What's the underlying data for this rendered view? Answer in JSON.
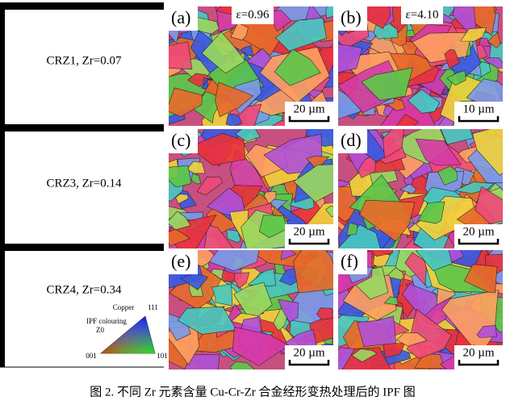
{
  "rows": [
    {
      "label": "CRZ1, Zr=0.07",
      "panels": [
        {
          "tag": "(a)",
          "strain": "ε=0.96",
          "scale": "20 µm"
        },
        {
          "tag": "(b)",
          "strain": "ε=4.10",
          "scale": "10 µm"
        }
      ]
    },
    {
      "label": "CRZ3, Zr=0.14",
      "panels": [
        {
          "tag": "(c)",
          "scale": "20 µm"
        },
        {
          "tag": "(d)",
          "scale": "20 µm"
        }
      ]
    },
    {
      "label": "CRZ4, Zr=0.34",
      "panels": [
        {
          "tag": "(e)",
          "scale": "20 µm"
        },
        {
          "tag": "(f)",
          "scale": "20 µm"
        }
      ]
    }
  ],
  "legend": {
    "material": "Copper",
    "title": "IPF colouring",
    "sub": "Z0",
    "corner_top": "111",
    "corner_left": "001",
    "corner_right": "101"
  },
  "caption": "图 2. 不同 Zr 元素含量 Cu-Cr-Zr 合金经形变热处理后的 IPF 图"
}
